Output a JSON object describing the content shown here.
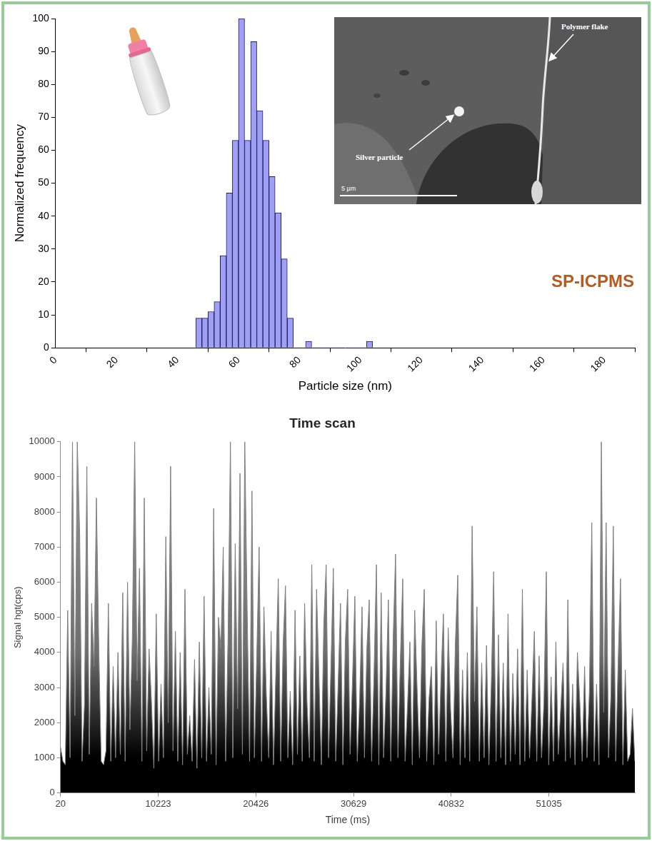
{
  "chart_data": [
    {
      "type": "histogram",
      "x_label": "Particle size (nm)",
      "y_label": "Normalized frequency",
      "annotations": [
        "SP-ICPMS"
      ],
      "inset_image": {
        "labels": [
          "Polymer flake",
          "Silver particle"
        ],
        "scale_bar": "5 µm"
      },
      "bins": [
        46,
        48,
        50,
        52,
        54,
        56,
        58,
        60,
        62,
        64,
        66,
        68,
        70,
        72,
        74,
        76,
        78,
        80,
        82,
        84,
        86,
        88,
        90,
        92,
        94,
        96,
        98,
        100,
        102,
        104
      ],
      "values": [
        9,
        9,
        11,
        14,
        28,
        47,
        63,
        100,
        63,
        93,
        72,
        63,
        52,
        41,
        27,
        9,
        0,
        0,
        2,
        0,
        0,
        0,
        0,
        0,
        0,
        0,
        0,
        0,
        2
      ],
      "color": "#9f9ff5",
      "xlim": [
        0,
        190
      ],
      "xticks": [
        0,
        20,
        40,
        60,
        80,
        100,
        120,
        140,
        160,
        180
      ],
      "ylim": [
        0,
        100
      ],
      "yticks": [
        0,
        10,
        20,
        30,
        40,
        50,
        60,
        70,
        80,
        90,
        100
      ],
      "grid": false
    },
    {
      "type": "line",
      "title": "Time scan",
      "x_label": "Time (ms)",
      "y_label": "Signal hgt(cps)",
      "x": [
        20,
        270,
        520,
        770,
        1020,
        1270,
        1520,
        1770,
        2020,
        2270,
        2520,
        2770,
        3020,
        3270,
        3520,
        3770,
        4020,
        4270,
        4520,
        4770,
        5020,
        5270,
        5520,
        5770,
        6020,
        6270,
        6520,
        6770,
        7020,
        7270,
        7520,
        7770,
        8020,
        8270,
        8520,
        8770,
        9020,
        9270,
        9520,
        9770,
        10020,
        10270,
        10520,
        10770,
        11020,
        11270,
        11520,
        11770,
        12020,
        12270,
        12520,
        12770,
        13020,
        13270,
        13520,
        13770,
        14020,
        14270,
        14520,
        14770,
        15020,
        15270,
        15520,
        15770,
        16020,
        16270,
        16520,
        16770,
        17020,
        17270,
        17520,
        17770,
        18020,
        18270,
        18520,
        18770,
        19020,
        19270,
        19520,
        19770,
        20020,
        20270,
        20520,
        20770,
        21020,
        21270,
        21520,
        21770,
        22020,
        22270,
        22520,
        22770,
        23020,
        23270,
        23520,
        23770,
        24020,
        24270,
        24520,
        24770,
        25020,
        25270,
        25520,
        25770,
        26020,
        26270,
        26520,
        26770,
        27020,
        27270,
        27520,
        27770,
        28020,
        28270,
        28520,
        28770,
        29020,
        29270,
        29520,
        29770,
        30020,
        30270,
        30520,
        30770,
        31020,
        31270,
        31520,
        31770,
        32020,
        32270,
        32520,
        32770,
        33020,
        33270,
        33520,
        33770,
        34020,
        34270,
        34520,
        34770,
        35020,
        35270,
        35520,
        35770,
        36020,
        36270,
        36520,
        36770,
        37020,
        37270,
        37520,
        37770,
        38020,
        38270,
        38520,
        38770,
        39020,
        39270,
        39520,
        39770,
        40020,
        40270,
        40520,
        40770,
        41020,
        41270,
        41520,
        41770,
        42020,
        42270,
        42520,
        42770,
        43020,
        43270,
        43520,
        43770,
        44020,
        44270,
        44520,
        44770,
        45020,
        45270,
        45520,
        45770,
        46020,
        46270,
        46520,
        46770,
        47020,
        47270,
        47520,
        47770,
        48020,
        48270,
        48520,
        48770,
        49020,
        49270,
        49520,
        49770,
        50020,
        50270,
        50520,
        50770,
        51020,
        51270,
        51520,
        51770,
        52020,
        52270,
        52520,
        52770,
        53020,
        53270,
        53520,
        53770,
        54020,
        54270,
        54520,
        54770,
        55020,
        55270,
        55520,
        55770,
        56020,
        56270,
        56520,
        56770,
        57020,
        57270,
        57520,
        57770,
        58020,
        58270,
        58520,
        58770,
        59020,
        59270,
        59520,
        59770,
        60020
      ],
      "values": [
        1300,
        900,
        800,
        5200,
        1000,
        10000,
        2200,
        10000,
        7400,
        900,
        2500,
        9300,
        1100,
        5400,
        3600,
        8400,
        4100,
        900,
        800,
        1200,
        5400,
        900,
        3600,
        1000,
        4000,
        1100,
        5700,
        900,
        6000,
        1800,
        4400,
        10000,
        3200,
        6400,
        900,
        8400,
        1200,
        4100,
        2600,
        700,
        5100,
        900,
        3100,
        1000,
        7300,
        2000,
        9300,
        1200,
        4600,
        900,
        4000,
        800,
        5800,
        1100,
        2200,
        900,
        3800,
        700,
        4300,
        1000,
        5600,
        900,
        3000,
        1100,
        8100,
        800,
        5000,
        4100,
        7000,
        900,
        4400,
        10000,
        1000,
        7100,
        2400,
        9100,
        1100,
        10000,
        5200,
        900,
        8600,
        1000,
        3900,
        7000,
        900,
        5300,
        2800,
        1000,
        4600,
        800,
        3500,
        6100,
        900,
        4200,
        5900,
        1000,
        2900,
        800,
        5200,
        1100,
        3900,
        900,
        5400,
        2600,
        1000,
        6500,
        900,
        5800,
        3300,
        800,
        4800,
        6500,
        1000,
        3600,
        6400,
        900,
        3100,
        5400,
        800,
        4300,
        5800,
        1100,
        3200,
        5600,
        900,
        2700,
        5300,
        1000,
        4100,
        5500,
        900,
        3400,
        6500,
        800,
        5700,
        1000,
        2900,
        5500,
        900,
        4400,
        6800,
        1000,
        3800,
        6100,
        900,
        2500,
        4300,
        800,
        5200,
        3000,
        1000,
        4200,
        5800,
        900,
        2700,
        3600,
        800,
        4900,
        1100,
        3300,
        5100,
        900,
        4700,
        2400,
        1000,
        4300,
        6200,
        800,
        3500,
        1000,
        4000,
        900,
        7600,
        2600,
        5300,
        900,
        3700,
        1000,
        4200,
        800,
        3100,
        6300,
        900,
        4500,
        1000,
        3700,
        800,
        5100,
        900,
        3400,
        1100,
        4100,
        800,
        5800,
        900,
        3500,
        1000,
        2700,
        4600,
        900,
        3900,
        1000,
        2600,
        6300,
        800,
        3300,
        900,
        4300,
        1100,
        2400,
        3700,
        900,
        5500,
        1000,
        3100,
        800,
        4000,
        2600,
        900,
        3600,
        1000,
        2900,
        7700,
        900,
        3100,
        800,
        10000,
        2300,
        7700,
        1000,
        2800,
        7600,
        900,
        3700,
        6100,
        800,
        3500,
        900,
        1100,
        2400,
        900
      ],
      "color": "#808080",
      "xlim": [
        20,
        60020
      ],
      "xticks": [
        20,
        10223,
        20426,
        30629,
        40832,
        51035
      ],
      "ylim": [
        0,
        10000
      ],
      "yticks": [
        0,
        1000,
        2000,
        3000,
        4000,
        5000,
        6000,
        7000,
        8000,
        9000,
        10000
      ],
      "grid": false
    }
  ]
}
